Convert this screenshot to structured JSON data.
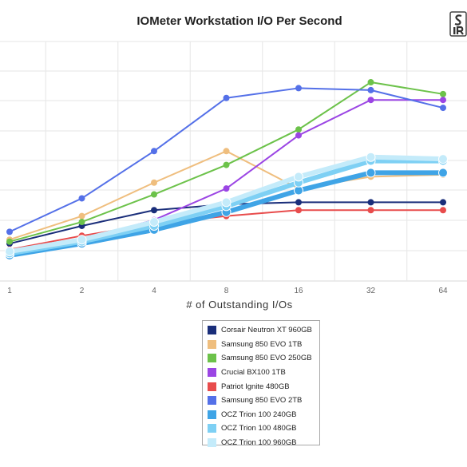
{
  "chart_data": {
    "type": "line",
    "title": "IOMeter Workstation I/O Per Second",
    "xlabel": "# of Outstanding I/Os",
    "ylabel": "",
    "x": [
      1,
      2,
      4,
      8,
      16,
      32,
      64
    ],
    "x_scale": "log2",
    "ylim": [
      0,
      1
    ],
    "grid": true,
    "legend_position": "bottom",
    "series": [
      {
        "name": "Corsair Neutron XT 960GB",
        "color": "#1a2e7a",
        "values": [
          0.19,
          0.28,
          0.36,
          0.39,
          0.4,
          0.4,
          0.4
        ],
        "thick": false
      },
      {
        "name": "Samsung 850 EVO 1TB",
        "color": "#efbe7e",
        "values": [
          0.21,
          0.33,
          0.5,
          0.66,
          0.47,
          0.53,
          0.54
        ],
        "thick": false
      },
      {
        "name": "Samsung 850 EVO 250GB",
        "color": "#6cc24a",
        "values": [
          0.2,
          0.3,
          0.44,
          0.59,
          0.77,
          1.01,
          0.95
        ],
        "thick": false
      },
      {
        "name": "Crucial BX100 1TB",
        "color": "#9b45e4",
        "values": [
          0.14,
          0.21,
          0.31,
          0.47,
          0.74,
          0.92,
          0.92
        ],
        "thick": false
      },
      {
        "name": "Patriot Ignite 480GB",
        "color": "#e84c4c",
        "values": [
          0.16,
          0.23,
          0.29,
          0.33,
          0.36,
          0.36,
          0.36
        ],
        "thick": false
      },
      {
        "name": "Samsung 850 EVO 2TB",
        "color": "#5470e8",
        "values": [
          0.25,
          0.42,
          0.66,
          0.93,
          0.98,
          0.97,
          0.88
        ],
        "thick": false
      },
      {
        "name": "OCZ Trion 100 240GB",
        "color": "#3fa4e6",
        "values": [
          0.13,
          0.19,
          0.26,
          0.35,
          0.46,
          0.55,
          0.55
        ],
        "thick": true
      },
      {
        "name": "OCZ Trion 100 480GB",
        "color": "#7ed0f4",
        "values": [
          0.14,
          0.2,
          0.28,
          0.38,
          0.5,
          0.61,
          0.61
        ],
        "thick": true
      },
      {
        "name": "OCZ Trion 100 960GB",
        "color": "#c4ebfa",
        "values": [
          0.15,
          0.21,
          0.3,
          0.4,
          0.53,
          0.63,
          0.62
        ],
        "thick": true
      }
    ]
  },
  "logo": {
    "text": "SIR"
  }
}
